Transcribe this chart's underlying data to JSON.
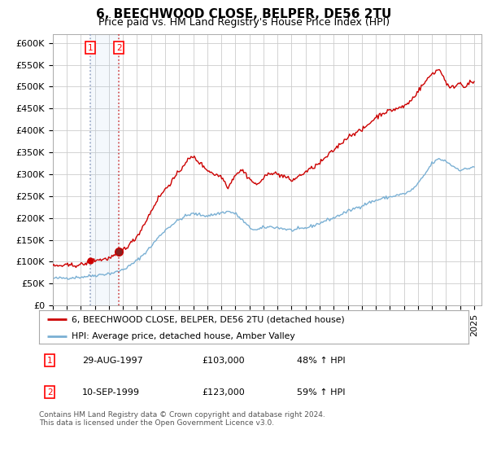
{
  "title": "6, BEECHWOOD CLOSE, BELPER, DE56 2TU",
  "subtitle": "Price paid vs. HM Land Registry's House Price Index (HPI)",
  "ylim": [
    0,
    620000
  ],
  "yticks": [
    0,
    50000,
    100000,
    150000,
    200000,
    250000,
    300000,
    350000,
    400000,
    450000,
    500000,
    550000,
    600000
  ],
  "xlim_start": 1995.0,
  "xlim_end": 2025.5,
  "sale1_date_label": "29-AUG-1997",
  "sale1_price": 103000,
  "sale1_pct": "48% ↑ HPI",
  "sale1_x": 1997.66,
  "sale2_date_label": "10-SEP-1999",
  "sale2_price": 123000,
  "sale2_pct": "59% ↑ HPI",
  "sale2_x": 1999.71,
  "legend_label1": "6, BEECHWOOD CLOSE, BELPER, DE56 2TU (detached house)",
  "legend_label2": "HPI: Average price, detached house, Amber Valley",
  "footer": "Contains HM Land Registry data © Crown copyright and database right 2024.\nThis data is licensed under the Open Government Licence v3.0.",
  "property_color": "#cc0000",
  "hpi_color": "#7ab0d4",
  "background_color": "#ffffff",
  "grid_color": "#cccccc",
  "title_fontsize": 11,
  "subtitle_fontsize": 9,
  "tick_fontsize": 8,
  "hpi_anchors": [
    [
      1995.0,
      62000
    ],
    [
      1995.5,
      62500
    ],
    [
      1996.0,
      63000
    ],
    [
      1996.5,
      64000
    ],
    [
      1997.0,
      65000
    ],
    [
      1997.5,
      67000
    ],
    [
      1998.0,
      69000
    ],
    [
      1998.5,
      71000
    ],
    [
      1999.0,
      73000
    ],
    [
      1999.5,
      76000
    ],
    [
      2000.0,
      82000
    ],
    [
      2000.5,
      91000
    ],
    [
      2001.0,
      103000
    ],
    [
      2001.5,
      118000
    ],
    [
      2002.0,
      135000
    ],
    [
      2002.5,
      155000
    ],
    [
      2003.0,
      172000
    ],
    [
      2003.5,
      185000
    ],
    [
      2004.0,
      196000
    ],
    [
      2004.5,
      205000
    ],
    [
      2005.0,
      210000
    ],
    [
      2005.5,
      207000
    ],
    [
      2006.0,
      205000
    ],
    [
      2006.5,
      208000
    ],
    [
      2007.0,
      212000
    ],
    [
      2007.5,
      215000
    ],
    [
      2008.0,
      210000
    ],
    [
      2008.5,
      195000
    ],
    [
      2009.0,
      178000
    ],
    [
      2009.5,
      172000
    ],
    [
      2010.0,
      178000
    ],
    [
      2010.5,
      180000
    ],
    [
      2011.0,
      178000
    ],
    [
      2011.5,
      175000
    ],
    [
      2012.0,
      172000
    ],
    [
      2012.5,
      174000
    ],
    [
      2013.0,
      177000
    ],
    [
      2013.5,
      182000
    ],
    [
      2014.0,
      188000
    ],
    [
      2014.5,
      195000
    ],
    [
      2015.0,
      200000
    ],
    [
      2015.5,
      208000
    ],
    [
      2016.0,
      215000
    ],
    [
      2016.5,
      222000
    ],
    [
      2017.0,
      228000
    ],
    [
      2017.5,
      235000
    ],
    [
      2018.0,
      240000
    ],
    [
      2018.5,
      245000
    ],
    [
      2019.0,
      248000
    ],
    [
      2019.5,
      252000
    ],
    [
      2020.0,
      255000
    ],
    [
      2020.5,
      262000
    ],
    [
      2021.0,
      278000
    ],
    [
      2021.5,
      300000
    ],
    [
      2022.0,
      325000
    ],
    [
      2022.5,
      335000
    ],
    [
      2023.0,
      330000
    ],
    [
      2023.5,
      318000
    ],
    [
      2024.0,
      310000
    ],
    [
      2024.5,
      312000
    ],
    [
      2025.0,
      318000
    ]
  ],
  "prop_anchors": [
    [
      1995.0,
      90000
    ],
    [
      1995.5,
      91000
    ],
    [
      1996.0,
      91500
    ],
    [
      1996.5,
      92000
    ],
    [
      1997.0,
      93000
    ],
    [
      1997.5,
      97000
    ],
    [
      1997.66,
      103000
    ],
    [
      1998.0,
      104000
    ],
    [
      1998.5,
      105000
    ],
    [
      1999.0,
      108000
    ],
    [
      1999.5,
      115000
    ],
    [
      1999.71,
      123000
    ],
    [
      2000.0,
      128000
    ],
    [
      2000.5,
      140000
    ],
    [
      2001.0,
      158000
    ],
    [
      2001.5,
      185000
    ],
    [
      2002.0,
      215000
    ],
    [
      2002.5,
      245000
    ],
    [
      2003.0,
      265000
    ],
    [
      2003.5,
      285000
    ],
    [
      2004.0,
      305000
    ],
    [
      2004.5,
      330000
    ],
    [
      2005.0,
      340000
    ],
    [
      2005.5,
      325000
    ],
    [
      2006.0,
      310000
    ],
    [
      2006.5,
      300000
    ],
    [
      2007.0,
      295000
    ],
    [
      2007.5,
      270000
    ],
    [
      2008.0,
      300000
    ],
    [
      2008.5,
      310000
    ],
    [
      2009.0,
      290000
    ],
    [
      2009.5,
      275000
    ],
    [
      2010.0,
      290000
    ],
    [
      2010.5,
      305000
    ],
    [
      2011.0,
      300000
    ],
    [
      2011.5,
      295000
    ],
    [
      2012.0,
      285000
    ],
    [
      2012.5,
      295000
    ],
    [
      2013.0,
      305000
    ],
    [
      2013.5,
      315000
    ],
    [
      2014.0,
      325000
    ],
    [
      2014.5,
      340000
    ],
    [
      2015.0,
      355000
    ],
    [
      2015.5,
      370000
    ],
    [
      2016.0,
      385000
    ],
    [
      2016.5,
      395000
    ],
    [
      2017.0,
      400000
    ],
    [
      2017.5,
      415000
    ],
    [
      2018.0,
      430000
    ],
    [
      2018.5,
      440000
    ],
    [
      2019.0,
      445000
    ],
    [
      2019.5,
      450000
    ],
    [
      2020.0,
      455000
    ],
    [
      2020.5,
      468000
    ],
    [
      2021.0,
      490000
    ],
    [
      2021.5,
      510000
    ],
    [
      2022.0,
      530000
    ],
    [
      2022.5,
      540000
    ],
    [
      2022.8,
      525000
    ],
    [
      2023.0,
      510000
    ],
    [
      2023.3,
      495000
    ],
    [
      2023.5,
      500000
    ],
    [
      2023.8,
      505000
    ],
    [
      2024.0,
      510000
    ],
    [
      2024.3,
      500000
    ],
    [
      2024.5,
      505000
    ],
    [
      2024.8,
      510000
    ],
    [
      2025.0,
      510000
    ]
  ]
}
